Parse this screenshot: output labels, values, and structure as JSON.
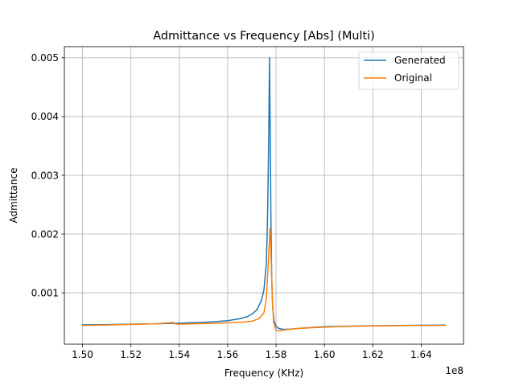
{
  "chart_data": {
    "type": "line",
    "title": "Admittance vs Frequency [Abs] (Multi)",
    "xlabel": "Frequency (KHz)",
    "ylabel": "Admittance",
    "x_offset_label": "1e8",
    "xlim": [
      1.4925,
      1.6575
    ],
    "ylim": [
      0.000125,
      0.00519
    ],
    "grid": true,
    "legend_position": "top-right",
    "x_ticks": [
      1.5,
      1.52,
      1.54,
      1.56,
      1.58,
      1.6,
      1.62,
      1.64
    ],
    "x_tick_labels": [
      "1.50",
      "1.52",
      "1.54",
      "1.56",
      "1.58",
      "1.60",
      "1.62",
      "1.64"
    ],
    "y_ticks": [
      0.001,
      0.002,
      0.003,
      0.004,
      0.005
    ],
    "y_tick_labels": [
      "0.001",
      "0.002",
      "0.003",
      "0.004",
      "0.005"
    ],
    "series": [
      {
        "name": "Generated",
        "color": "#1f77b4",
        "x": [
          1.5,
          1.51,
          1.52,
          1.53,
          1.54,
          1.55,
          1.555,
          1.56,
          1.565,
          1.568,
          1.57,
          1.572,
          1.574,
          1.575,
          1.576,
          1.5765,
          1.577,
          1.5773,
          1.5776,
          1.5779,
          1.5782,
          1.5786,
          1.5792,
          1.58,
          1.581,
          1.5825,
          1.584,
          1.586,
          1.59,
          1.595,
          1.6,
          1.61,
          1.62,
          1.63,
          1.64,
          1.65
        ],
        "y": [
          0.000455,
          0.000458,
          0.000465,
          0.000472,
          0.000482,
          0.000497,
          0.000508,
          0.000525,
          0.000558,
          0.000592,
          0.000635,
          0.000705,
          0.00087,
          0.00105,
          0.0015,
          0.0023,
          0.0037,
          0.005,
          0.00375,
          0.0022,
          0.0013,
          0.00075,
          0.00052,
          0.00043,
          0.000395,
          0.00038,
          0.000378,
          0.000382,
          0.000395,
          0.00041,
          0.000422,
          0.000432,
          0.000438,
          0.000443,
          0.000447,
          0.00045
        ]
      },
      {
        "name": "Original",
        "color": "#ff7f0e",
        "x": [
          1.5,
          1.51,
          1.52,
          1.53,
          1.5365,
          1.5375,
          1.5385,
          1.54,
          1.55,
          1.56,
          1.565,
          1.57,
          1.573,
          1.575,
          1.576,
          1.5768,
          1.5775,
          1.578,
          1.5785,
          1.579,
          1.58,
          1.581,
          1.582,
          1.5835,
          1.585,
          1.587,
          1.59,
          1.595,
          1.6,
          1.605,
          1.61,
          1.62,
          1.63,
          1.64,
          1.65
        ],
        "y": [
          0.000445,
          0.000452,
          0.000462,
          0.000472,
          0.000492,
          0.000495,
          0.000468,
          0.000465,
          0.000475,
          0.000488,
          0.000498,
          0.000515,
          0.00056,
          0.00066,
          0.0009,
          0.0015,
          0.0021,
          0.00155,
          0.00085,
          0.0005,
          0.000365,
          0.00035,
          0.000358,
          0.000368,
          0.000375,
          0.000385,
          0.000395,
          0.000405,
          0.000415,
          0.000422,
          0.000428,
          0.000435,
          0.00044,
          0.000445,
          0.000445
        ]
      }
    ]
  }
}
